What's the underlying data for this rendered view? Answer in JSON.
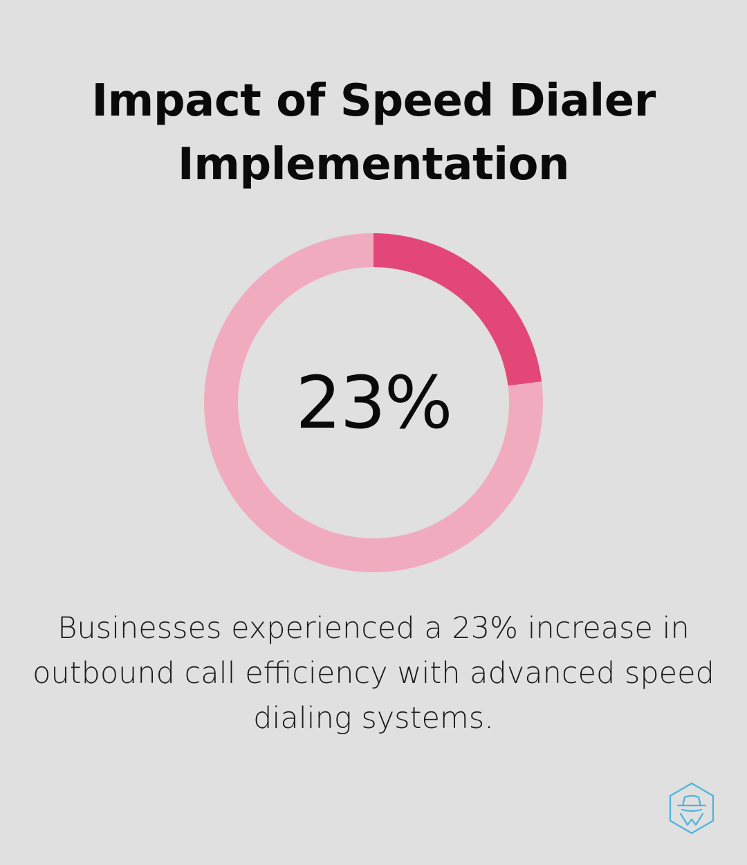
{
  "title_lines": [
    "Impact of Speed Dialer",
    "Implementation"
  ],
  "chart_data": {
    "type": "pie",
    "style": "donut",
    "values": [
      23,
      77
    ],
    "center_label": "23%",
    "colors": {
      "highlight": "#e34779",
      "remainder": "#f1abbf"
    }
  },
  "caption_lines": [
    "Businesses experienced a 23% increase in",
    "outbound call efficiency with advanced speed",
    "dialing systems."
  ],
  "logo": {
    "icon": "hexagon-spy-hat-icon",
    "color": "#4bb3dd"
  },
  "background_color": "#dfe0df"
}
